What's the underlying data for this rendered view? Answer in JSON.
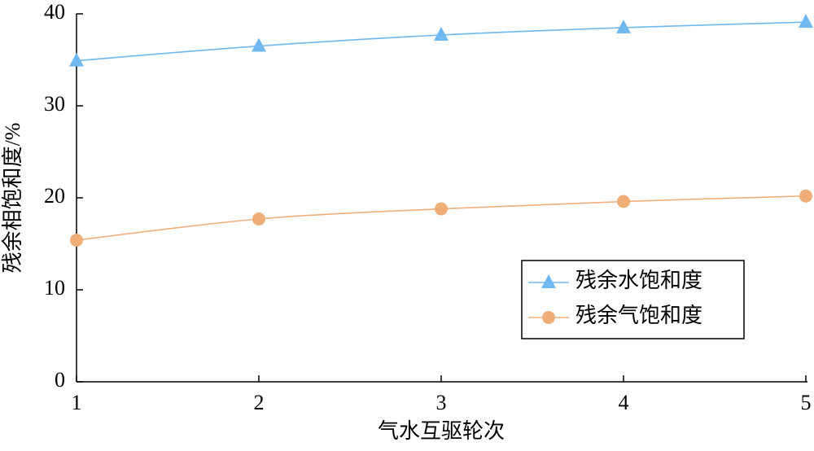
{
  "chart_data": {
    "type": "line",
    "x_label": "气水互驱轮次",
    "y_label": "残余相饱和度/%",
    "x": [
      1,
      2,
      3,
      4,
      5
    ],
    "xlim": [
      1,
      5
    ],
    "xticks": [
      1,
      2,
      3,
      4,
      5
    ],
    "ylim": [
      0,
      40
    ],
    "yticks": [
      0,
      10,
      20,
      30,
      40
    ],
    "legend": "lower right",
    "series": [
      {
        "name": "残余水饱和度",
        "color": "#6fb8f0",
        "marker": "triangle",
        "values": [
          34.9,
          36.5,
          37.7,
          38.5,
          39.1
        ]
      },
      {
        "name": "残余气饱和度",
        "color": "#efae78",
        "marker": "circle",
        "values": [
          15.4,
          17.7,
          18.8,
          19.6,
          20.2
        ]
      }
    ]
  }
}
